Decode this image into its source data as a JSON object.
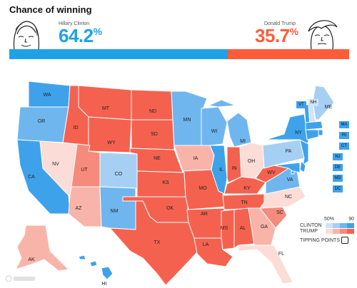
{
  "header": {
    "title": "Chance of winning",
    "clinton": {
      "name": "Hillary Clinton",
      "chance": "64.2",
      "pct_symbol": "%",
      "color": "#1ea1e6"
    },
    "trump": {
      "name": "Donald Trump",
      "chance": "35.7",
      "pct_symbol": "%",
      "color": "#ff5c3a"
    }
  },
  "odds_bar": {
    "clinton_share": 0.642
  },
  "colors": {
    "safe_d": "#3ea2eb",
    "likely_d": "#6fb6ef",
    "lean_d": "#a6cff4",
    "tilt_d": "#cfe4f8",
    "safe_r": "#f4624f",
    "likely_r": "#f68a7b",
    "lean_r": "#f9b4aa",
    "tilt_r": "#fcdcd6"
  },
  "states": [
    {
      "abbr": "WA",
      "rating": "safe_d"
    },
    {
      "abbr": "OR",
      "rating": "likely_d"
    },
    {
      "abbr": "CA",
      "rating": "safe_d"
    },
    {
      "abbr": "NV",
      "rating": "tilt_r"
    },
    {
      "abbr": "ID",
      "rating": "safe_r"
    },
    {
      "abbr": "MT",
      "rating": "safe_r"
    },
    {
      "abbr": "WY",
      "rating": "safe_r"
    },
    {
      "abbr": "UT",
      "rating": "likely_r"
    },
    {
      "abbr": "AZ",
      "rating": "lean_r"
    },
    {
      "abbr": "CO",
      "rating": "lean_d"
    },
    {
      "abbr": "NM",
      "rating": "likely_d"
    },
    {
      "abbr": "ND",
      "rating": "safe_r"
    },
    {
      "abbr": "SD",
      "rating": "safe_r"
    },
    {
      "abbr": "NE",
      "rating": "safe_r"
    },
    {
      "abbr": "KS",
      "rating": "safe_r"
    },
    {
      "abbr": "OK",
      "rating": "safe_r"
    },
    {
      "abbr": "TX",
      "rating": "safe_r"
    },
    {
      "abbr": "MN",
      "rating": "likely_d"
    },
    {
      "abbr": "IA",
      "rating": "lean_r"
    },
    {
      "abbr": "MO",
      "rating": "safe_r"
    },
    {
      "abbr": "AR",
      "rating": "safe_r"
    },
    {
      "abbr": "LA",
      "rating": "safe_r"
    },
    {
      "abbr": "WI",
      "rating": "likely_d"
    },
    {
      "abbr": "IL",
      "rating": "safe_d"
    },
    {
      "abbr": "MI",
      "rating": "likely_d"
    },
    {
      "abbr": "IN",
      "rating": "safe_r"
    },
    {
      "abbr": "OH",
      "rating": "tilt_r"
    },
    {
      "abbr": "KY",
      "rating": "safe_r"
    },
    {
      "abbr": "TN",
      "rating": "safe_r"
    },
    {
      "abbr": "MS",
      "rating": "safe_r"
    },
    {
      "abbr": "AL",
      "rating": "safe_r"
    },
    {
      "abbr": "GA",
      "rating": "lean_r"
    },
    {
      "abbr": "FL",
      "rating": "tilt_r"
    },
    {
      "abbr": "SC",
      "rating": "likely_r"
    },
    {
      "abbr": "NC",
      "rating": "tilt_r"
    },
    {
      "abbr": "VA",
      "rating": "likely_d"
    },
    {
      "abbr": "WV",
      "rating": "safe_r"
    },
    {
      "abbr": "PA",
      "rating": "lean_d"
    },
    {
      "abbr": "NY",
      "rating": "safe_d"
    },
    {
      "abbr": "VT",
      "rating": "safe_d"
    },
    {
      "abbr": "NH",
      "rating": "tilt_d"
    },
    {
      "abbr": "ME",
      "rating": "lean_d"
    },
    {
      "abbr": "MA",
      "rating": "safe_d"
    },
    {
      "abbr": "RI",
      "rating": "safe_d"
    },
    {
      "abbr": "CT",
      "rating": "safe_d"
    },
    {
      "abbr": "NJ",
      "rating": "safe_d"
    },
    {
      "abbr": "DE",
      "rating": "safe_d"
    },
    {
      "abbr": "MD",
      "rating": "safe_d"
    },
    {
      "abbr": "DC",
      "rating": "safe_d"
    },
    {
      "abbr": "AK",
      "rating": "lean_r"
    },
    {
      "abbr": "HI",
      "rating": "safe_d"
    }
  ],
  "legend": {
    "scale_labels": [
      "50%",
      "90"
    ],
    "clinton_label": "CLINTON",
    "trump_label": "TRUMP",
    "tipping_points_label": "TIPPING POINTS"
  }
}
